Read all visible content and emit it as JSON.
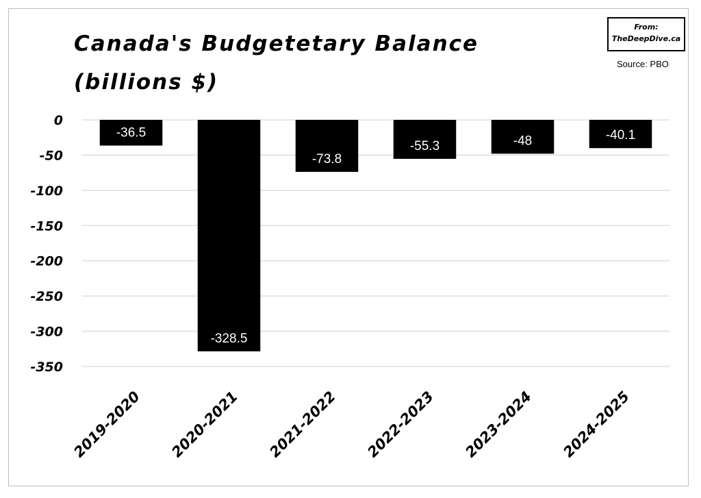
{
  "header": {
    "title_line1": "Canada's Budgetetary Balance",
    "title_line2": "(billions $)",
    "badge_line1": "From:",
    "badge_line2": "TheDeepDive.ca",
    "source": "Source: PBO"
  },
  "chart_data": {
    "type": "bar",
    "title": "Canada's Budgetetary Balance (billions $)",
    "categories": [
      "2019-2020",
      "2020-2021",
      "2021-2022",
      "2022-2023",
      "2023-2024",
      "2024-2025"
    ],
    "values": [
      -36.5,
      -328.5,
      -73.8,
      -55.3,
      -48,
      -40.1
    ],
    "data_labels": [
      "-36.5",
      "-328.5",
      "-73.8",
      "-55.3",
      "-48",
      "-40.1"
    ],
    "yticks": [
      0,
      -50,
      -100,
      -150,
      -200,
      -250,
      -300,
      -350
    ],
    "ylim": [
      -350,
      0
    ],
    "xlabel": "",
    "ylabel": "",
    "grid": true,
    "legend": "none",
    "bar_color": "#000000",
    "label_color": "#ffffff"
  }
}
